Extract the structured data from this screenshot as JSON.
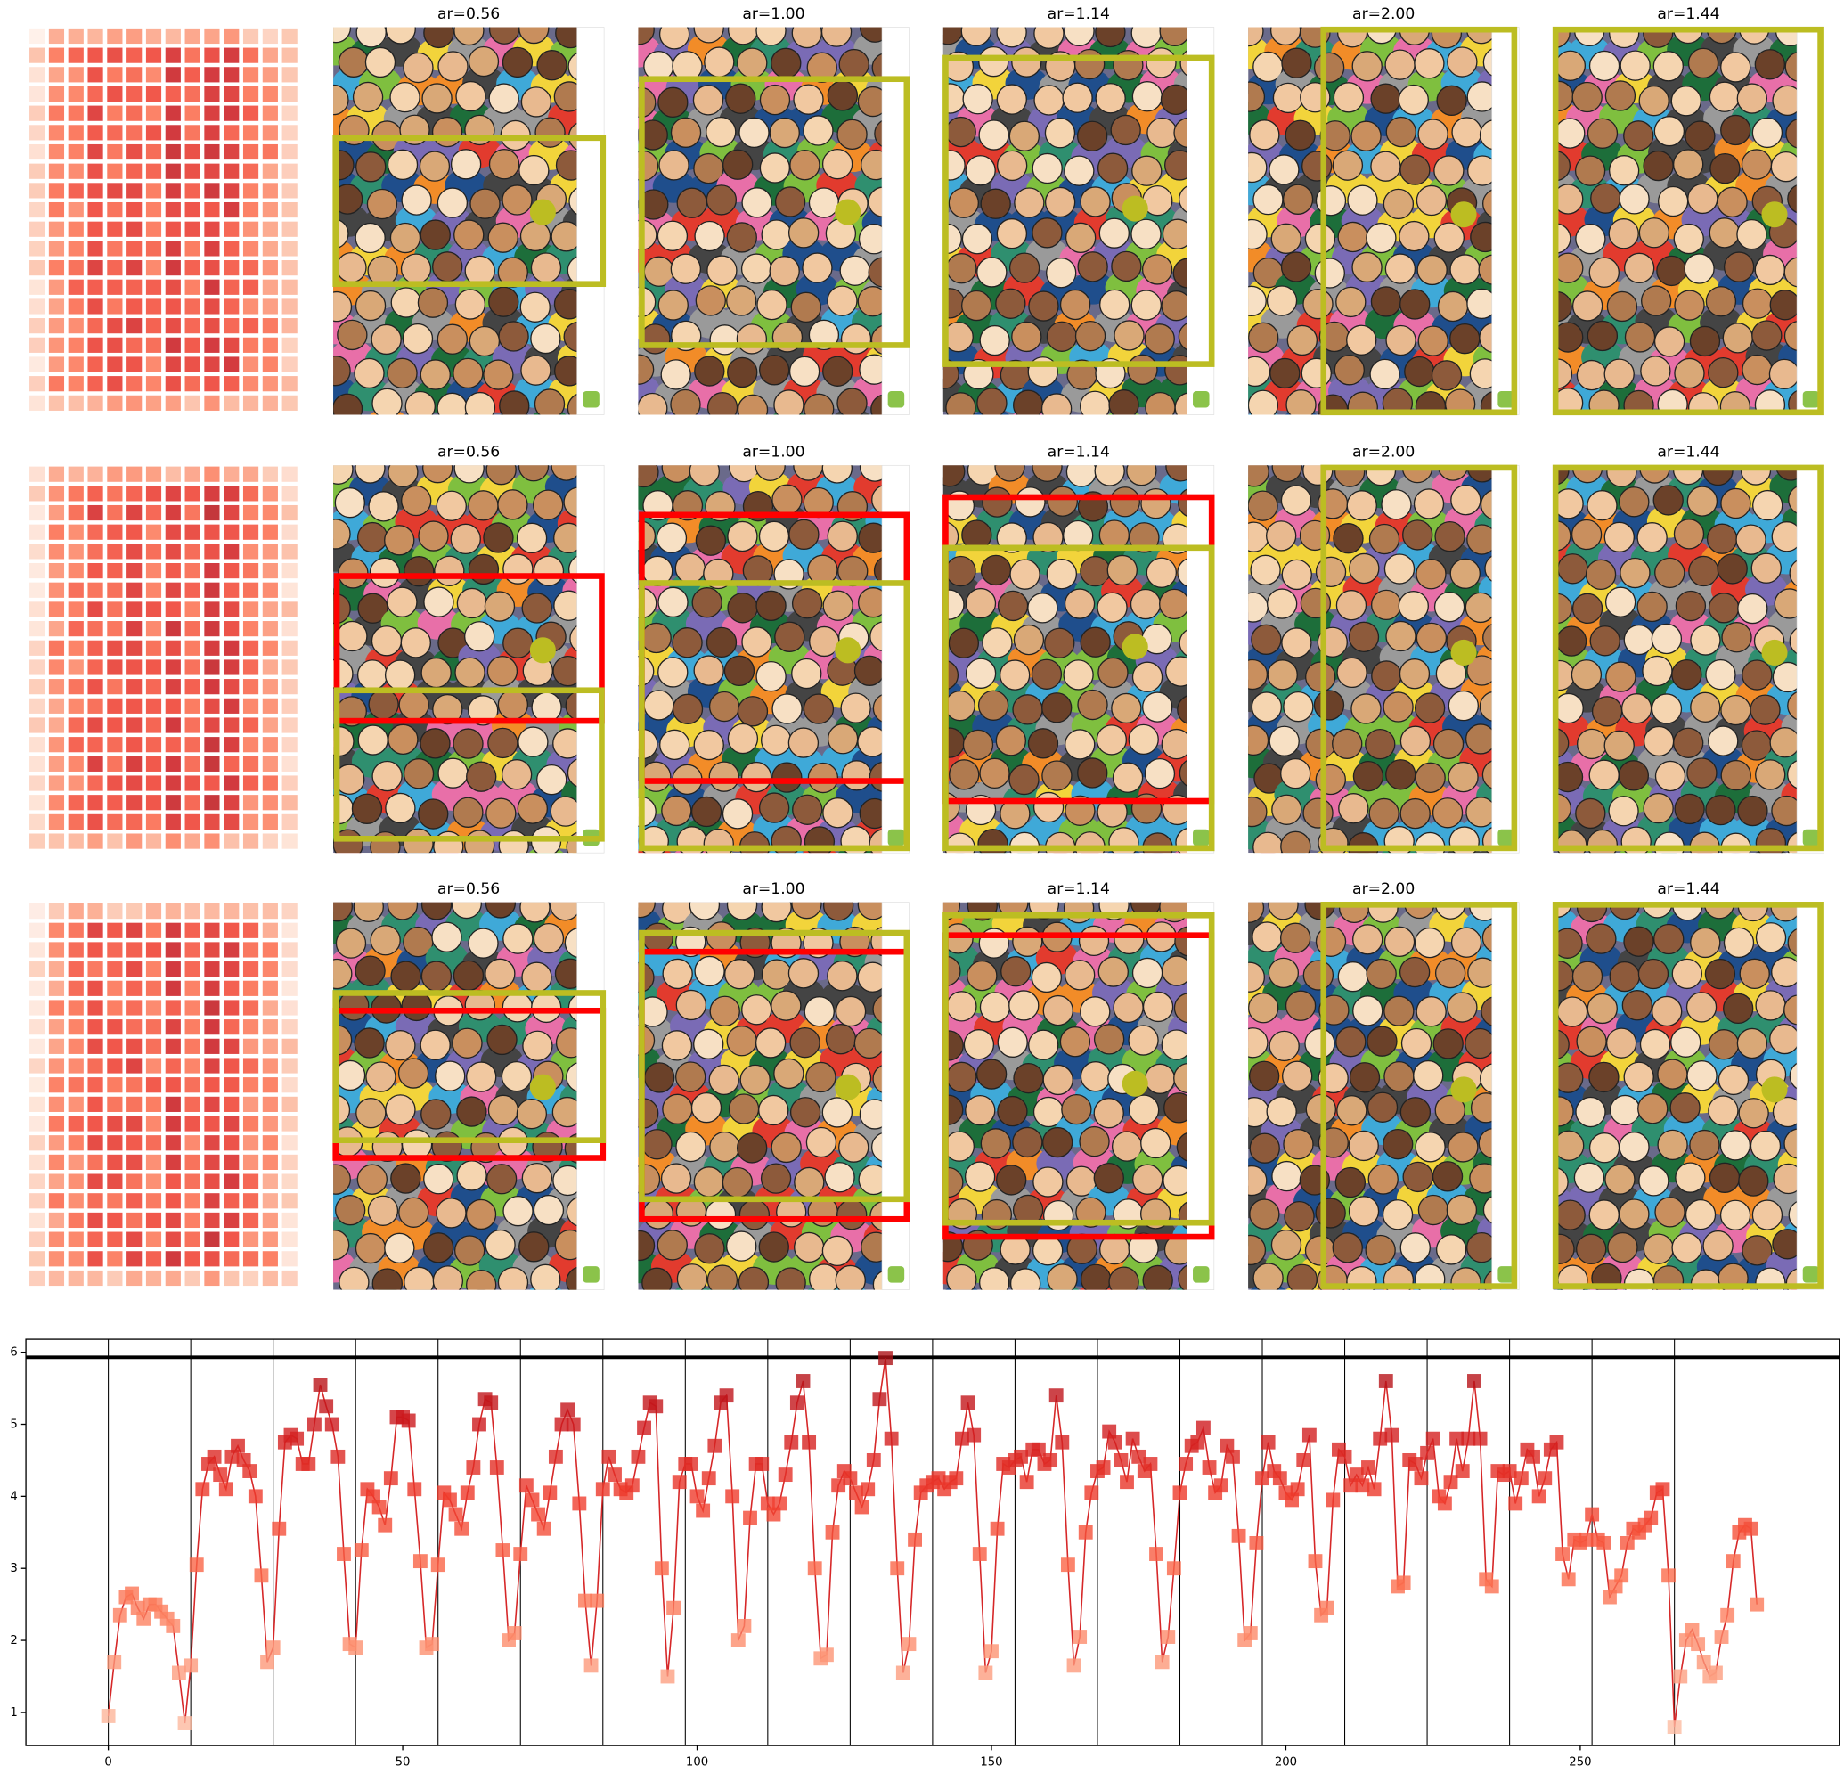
{
  "panels": {
    "rows": [
      {
        "titles": [
          "ar=0.56",
          "ar=1.00",
          "ar=1.14",
          "ar=2.00",
          "ar=1.44"
        ]
      },
      {
        "titles": [
          "ar=0.56",
          "ar=1.00",
          "ar=1.14",
          "ar=2.00",
          "ar=1.44"
        ]
      },
      {
        "titles": [
          "ar=0.56",
          "ar=1.00",
          "ar=1.14",
          "ar=2.00",
          "ar=1.44"
        ]
      }
    ]
  },
  "chart_data": {
    "type": "line",
    "color": "#d62728",
    "x": [
      0,
      1,
      2,
      3,
      4,
      5,
      6,
      7,
      8,
      9,
      10,
      11,
      12,
      13,
      14,
      15,
      16,
      17,
      18,
      19,
      20,
      21,
      22,
      23,
      24,
      25,
      26,
      27,
      28,
      29,
      30,
      31,
      32,
      33,
      34,
      35,
      36,
      37,
      38,
      39,
      40,
      41,
      42,
      43,
      44,
      45,
      46,
      47,
      48,
      49,
      50,
      51,
      52,
      53,
      54,
      55,
      56,
      57,
      58,
      59,
      60,
      61,
      62,
      63,
      64,
      65,
      66,
      67,
      68,
      69,
      70,
      71,
      72,
      73,
      74,
      75,
      76,
      77,
      78,
      79,
      80,
      81,
      82,
      83,
      84,
      85,
      86,
      87,
      88,
      89,
      90,
      91,
      92,
      93,
      94,
      95,
      96,
      97,
      98,
      99,
      100,
      101,
      102,
      103,
      104,
      105,
      106,
      107,
      108,
      109,
      110,
      111,
      112,
      113,
      114,
      115,
      116,
      117,
      118,
      119,
      120,
      121,
      122,
      123,
      124,
      125,
      126,
      127,
      128,
      129,
      130,
      131,
      132,
      133,
      134,
      135,
      136,
      137,
      138,
      139,
      140,
      141,
      142,
      143,
      144,
      145,
      146,
      147,
      148,
      149,
      150,
      151,
      152,
      153,
      154,
      155,
      156,
      157,
      158,
      159,
      160,
      161,
      162,
      163,
      164,
      165,
      166,
      167,
      168,
      169,
      170,
      171,
      172,
      173,
      174,
      175,
      176,
      177,
      178,
      179,
      180,
      181,
      182,
      183,
      184,
      185,
      186,
      187,
      188,
      189,
      190,
      191,
      192,
      193,
      194,
      195,
      196,
      197,
      198,
      199,
      200,
      201,
      202,
      203,
      204,
      205,
      206,
      207,
      208,
      209,
      210,
      211,
      212,
      213,
      214,
      215,
      216,
      217,
      218,
      219,
      220,
      221,
      222,
      223,
      224,
      225,
      226,
      227,
      228,
      229,
      230,
      231,
      232,
      233,
      234,
      235,
      236,
      237,
      238,
      239,
      240,
      241,
      242,
      243,
      244,
      245,
      246,
      247,
      248,
      249,
      250,
      251,
      252,
      253,
      254,
      255,
      256,
      257,
      258,
      259,
      260,
      261,
      262,
      263,
      264,
      265,
      266,
      267,
      268,
      269,
      270,
      271,
      272,
      273,
      274,
      275,
      276,
      277,
      278,
      279,
      280
    ],
    "values": [
      0.95,
      1.7,
      2.35,
      2.6,
      2.65,
      2.45,
      2.3,
      2.5,
      2.5,
      2.4,
      2.3,
      2.2,
      1.55,
      0.85,
      1.65,
      3.05,
      4.1,
      4.45,
      4.55,
      4.3,
      4.1,
      4.55,
      4.7,
      4.5,
      4.35,
      4.0,
      2.9,
      1.7,
      1.9,
      3.55,
      4.75,
      4.85,
      4.8,
      4.45,
      4.45,
      5.0,
      5.55,
      5.25,
      5.0,
      4.55,
      3.2,
      1.95,
      1.9,
      3.25,
      4.1,
      4.0,
      3.85,
      3.6,
      4.25,
      5.1,
      5.1,
      5.05,
      4.1,
      3.1,
      1.9,
      1.95,
      3.05,
      4.05,
      3.95,
      3.75,
      3.55,
      4.05,
      4.4,
      5.0,
      5.35,
      5.3,
      4.4,
      3.25,
      2.0,
      2.1,
      3.2,
      4.15,
      3.95,
      3.75,
      3.55,
      4.05,
      4.55,
      5.0,
      5.2,
      5.0,
      3.9,
      2.55,
      1.65,
      2.55,
      4.1,
      4.55,
      4.3,
      4.1,
      4.05,
      4.15,
      4.55,
      4.95,
      5.3,
      5.25,
      3.0,
      1.5,
      2.45,
      4.2,
      4.45,
      4.45,
      4.0,
      3.8,
      4.25,
      4.7,
      5.3,
      5.4,
      4.0,
      2.0,
      2.2,
      3.7,
      4.45,
      4.45,
      3.9,
      3.75,
      3.9,
      4.3,
      4.75,
      5.3,
      5.6,
      4.75,
      3.0,
      1.75,
      1.8,
      3.5,
      4.15,
      4.35,
      4.25,
      4.05,
      3.85,
      4.1,
      4.5,
      5.35,
      5.92,
      4.8,
      3.0,
      1.55,
      1.95,
      3.4,
      4.05,
      4.15,
      4.2,
      4.25,
      4.1,
      4.2,
      4.25,
      4.8,
      5.3,
      4.85,
      3.2,
      1.55,
      1.85,
      3.55,
      4.45,
      4.4,
      4.5,
      4.55,
      4.2,
      4.65,
      4.65,
      4.45,
      4.5,
      5.4,
      4.75,
      3.05,
      1.65,
      2.05,
      3.5,
      4.05,
      4.35,
      4.4,
      4.9,
      4.75,
      4.5,
      4.2,
      4.8,
      4.55,
      4.35,
      4.45,
      3.2,
      1.7,
      2.05,
      3.0,
      4.05,
      4.45,
      4.7,
      4.75,
      4.95,
      4.4,
      4.05,
      4.15,
      4.7,
      4.55,
      3.45,
      2.0,
      2.1,
      3.35,
      4.25,
      4.75,
      4.35,
      4.25,
      4.05,
      3.95,
      4.1,
      4.5,
      4.85,
      3.1,
      2.35,
      2.45,
      3.95,
      4.65,
      4.55,
      4.15,
      4.3,
      4.15,
      4.4,
      4.1,
      4.8,
      5.6,
      4.85,
      2.75,
      2.8,
      4.5,
      4.45,
      4.25,
      4.6,
      4.8,
      4.0,
      3.9,
      4.2,
      4.8,
      4.35,
      4.8,
      5.6,
      4.8,
      2.85,
      2.75,
      4.35,
      4.3,
      4.35,
      3.9,
      4.25,
      4.65,
      4.55,
      4.0,
      4.25,
      4.65,
      4.75,
      3.2,
      2.85,
      3.4,
      3.35,
      3.4,
      3.75,
      3.4,
      3.35,
      2.6,
      2.75,
      2.9,
      3.35,
      3.55,
      3.5,
      3.6,
      3.7,
      4.05,
      4.1,
      2.9,
      0.8,
      1.5,
      2.0,
      2.15,
      1.95,
      1.7,
      1.5,
      1.55,
      2.05,
      2.35,
      3.1,
      3.5,
      3.6,
      3.55,
      2.5
    ],
    "xlim": [
      -14,
      294
    ],
    "ylim": [
      0.54,
      6.18
    ],
    "xticks": [
      0,
      50,
      100,
      150,
      200,
      250
    ],
    "yticks": [
      1,
      2,
      3,
      4,
      5,
      6
    ],
    "vlines": [
      0,
      14,
      28,
      42,
      56,
      70,
      84,
      98,
      112,
      126,
      140,
      154,
      168,
      182,
      196,
      210,
      224,
      238,
      252,
      266
    ],
    "hline": 5.93
  }
}
